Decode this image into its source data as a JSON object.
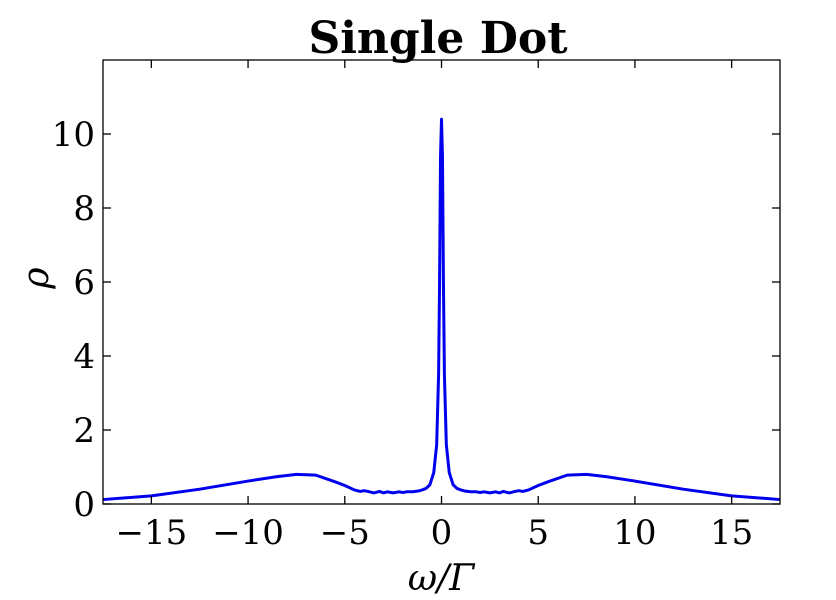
{
  "chart_data": {
    "type": "line",
    "title": "Single Dot",
    "xlabel": "ω/Γ",
    "ylabel": "ρ",
    "xlim": [
      -17.5,
      17.5
    ],
    "ylim": [
      0,
      12
    ],
    "xticks": [
      -15,
      -10,
      -5,
      0,
      5,
      10,
      15
    ],
    "xtick_labels": [
      "−15",
      "−10",
      "−5",
      "0",
      "5",
      "10",
      "15"
    ],
    "yticks": [
      0,
      2,
      4,
      6,
      8,
      10
    ],
    "ytick_labels": [
      "0",
      "2",
      "4",
      "6",
      "8",
      "10"
    ],
    "grid": false,
    "series": [
      {
        "color": "#0000ee",
        "x": [
          -17.5,
          -15,
          -12.5,
          -10,
          -8.5,
          -7.5,
          -6.5,
          -5.5,
          -5,
          -4.5,
          -4.2,
          -4,
          -3.8,
          -3.5,
          -3.2,
          -3,
          -2.8,
          -2.5,
          -2.2,
          -2,
          -1.8,
          -1.5,
          -1.2,
          -1,
          -0.8,
          -0.6,
          -0.4,
          -0.25,
          -0.15,
          -0.1,
          -0.05,
          0,
          0.05,
          0.1,
          0.15,
          0.25,
          0.4,
          0.6,
          0.8,
          1,
          1.2,
          1.5,
          1.8,
          2,
          2.2,
          2.5,
          2.8,
          3,
          3.2,
          3.5,
          3.8,
          4,
          4.2,
          4.5,
          5,
          5.5,
          6.5,
          7.5,
          8.5,
          10,
          12.5,
          15,
          17.5
        ],
        "y": [
          0.12,
          0.22,
          0.4,
          0.62,
          0.74,
          0.8,
          0.78,
          0.6,
          0.5,
          0.38,
          0.34,
          0.36,
          0.34,
          0.3,
          0.34,
          0.3,
          0.33,
          0.3,
          0.33,
          0.31,
          0.33,
          0.33,
          0.35,
          0.38,
          0.42,
          0.52,
          0.85,
          1.6,
          3.5,
          6.0,
          9.4,
          10.4,
          9.4,
          6.0,
          3.5,
          1.6,
          0.85,
          0.52,
          0.42,
          0.38,
          0.35,
          0.33,
          0.33,
          0.31,
          0.33,
          0.3,
          0.33,
          0.3,
          0.34,
          0.3,
          0.34,
          0.36,
          0.34,
          0.38,
          0.5,
          0.6,
          0.78,
          0.8,
          0.74,
          0.62,
          0.4,
          0.22,
          0.12
        ]
      }
    ]
  }
}
